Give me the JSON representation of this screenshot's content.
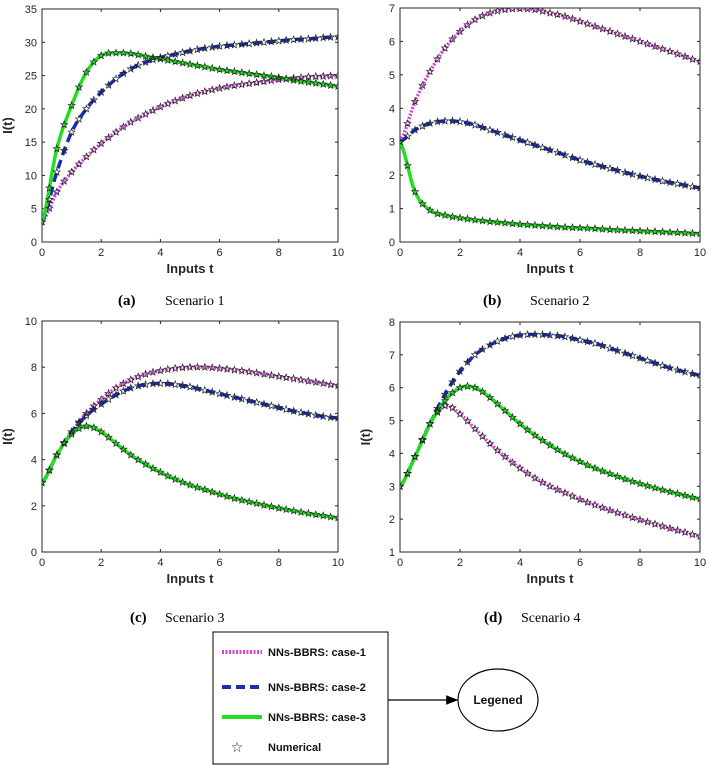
{
  "chart_data": [
    {
      "type": "line",
      "panel": "a",
      "caption_letter": "(a)",
      "caption_text": "Scenario 1",
      "xlabel": "Inputs t",
      "ylabel": "I(t)",
      "xlim": [
        0,
        10
      ],
      "ylim": [
        0,
        35
      ],
      "xticks": [
        0,
        2,
        4,
        6,
        8,
        10
      ],
      "yticks": [
        0,
        5,
        10,
        15,
        20,
        25,
        30,
        35
      ],
      "x": [
        0,
        0.5,
        1,
        1.5,
        2,
        2.5,
        3,
        3.5,
        4,
        4.5,
        5,
        5.5,
        6,
        6.5,
        7,
        7.5,
        8,
        8.5,
        9,
        9.5,
        10
      ],
      "series": [
        {
          "name": "NNs-BBRS: case-1",
          "values": [
            3,
            7.5,
            10.5,
            12.8,
            14.8,
            16.5,
            18,
            19.2,
            20.3,
            21.2,
            22,
            22.6,
            23.1,
            23.5,
            23.8,
            24.1,
            24.4,
            24.6,
            24.8,
            24.9,
            25
          ]
        },
        {
          "name": "NNs-BBRS: case-2",
          "values": [
            3,
            10.5,
            16.5,
            20,
            22.5,
            24.5,
            26,
            27,
            27.7,
            28.2,
            28.7,
            29.1,
            29.4,
            29.6,
            29.8,
            30,
            30.2,
            30.4,
            30.5,
            30.7,
            30.8
          ]
        },
        {
          "name": "NNs-BBRS: case-3",
          "values": [
            3,
            14,
            20.5,
            25.5,
            28,
            28.4,
            28.3,
            27.9,
            27.5,
            27.1,
            26.7,
            26.3,
            25.9,
            25.6,
            25.3,
            25,
            24.7,
            24.3,
            24,
            23.7,
            23.4
          ]
        }
      ]
    },
    {
      "type": "line",
      "panel": "b",
      "caption_letter": "(b)",
      "caption_text": "Scenario 2",
      "xlabel": "Inputs t",
      "ylabel": "",
      "xlim": [
        0,
        10
      ],
      "ylim": [
        0,
        7
      ],
      "xticks": [
        0,
        2,
        4,
        6,
        8,
        10
      ],
      "yticks": [
        0,
        1,
        2,
        3,
        4,
        5,
        6,
        7
      ],
      "x": [
        0,
        0.5,
        1,
        1.5,
        2,
        2.5,
        3,
        3.5,
        4,
        4.5,
        5,
        5.5,
        6,
        6.5,
        7,
        7.5,
        8,
        8.5,
        9,
        9.5,
        10
      ],
      "series": [
        {
          "name": "NNs-BBRS: case-1",
          "values": [
            3,
            4.2,
            5.1,
            5.8,
            6.3,
            6.65,
            6.85,
            6.95,
            6.98,
            6.95,
            6.85,
            6.75,
            6.6,
            6.45,
            6.3,
            6.15,
            6,
            5.85,
            5.7,
            5.55,
            5.4
          ]
        },
        {
          "name": "NNs-BBRS: case-2",
          "values": [
            3,
            3.35,
            3.55,
            3.62,
            3.6,
            3.5,
            3.35,
            3.2,
            3.05,
            2.9,
            2.75,
            2.6,
            2.45,
            2.32,
            2.2,
            2.08,
            1.97,
            1.87,
            1.78,
            1.7,
            1.62
          ]
        },
        {
          "name": "NNs-BBRS: case-3",
          "values": [
            3,
            1.5,
            0.95,
            0.8,
            0.72,
            0.66,
            0.61,
            0.57,
            0.53,
            0.5,
            0.47,
            0.44,
            0.42,
            0.4,
            0.37,
            0.35,
            0.33,
            0.31,
            0.29,
            0.27,
            0.25
          ]
        }
      ]
    },
    {
      "type": "line",
      "panel": "c",
      "caption_letter": "(c)",
      "caption_text": "Scenario 3",
      "xlabel": "Inputs t",
      "ylabel": "I(t)",
      "xlim": [
        0,
        10
      ],
      "ylim": [
        0,
        10
      ],
      "xticks": [
        0,
        2,
        4,
        6,
        8,
        10
      ],
      "yticks": [
        0,
        2,
        4,
        6,
        8,
        10
      ],
      "x": [
        0,
        0.5,
        1,
        1.5,
        2,
        2.5,
        3,
        3.5,
        4,
        4.5,
        5,
        5.5,
        6,
        6.5,
        7,
        7.5,
        8,
        8.5,
        9,
        9.5,
        10
      ],
      "series": [
        {
          "name": "NNs-BBRS: case-1",
          "values": [
            3,
            4.2,
            5.2,
            6,
            6.6,
            7.1,
            7.45,
            7.7,
            7.85,
            7.95,
            8,
            8,
            7.95,
            7.88,
            7.8,
            7.7,
            7.6,
            7.5,
            7.4,
            7.3,
            7.2
          ]
        },
        {
          "name": "NNs-BBRS: case-2",
          "values": [
            3,
            4.2,
            5.2,
            5.9,
            6.4,
            6.8,
            7.1,
            7.25,
            7.3,
            7.25,
            7.15,
            7,
            6.85,
            6.7,
            6.55,
            6.4,
            6.25,
            6.1,
            5.98,
            5.87,
            5.8
          ]
        },
        {
          "name": "NNs-BBRS: case-3",
          "values": [
            3,
            4.2,
            5.1,
            5.45,
            5.2,
            4.7,
            4.2,
            3.8,
            3.45,
            3.15,
            2.9,
            2.7,
            2.5,
            2.32,
            2.17,
            2.03,
            1.9,
            1.78,
            1.67,
            1.57,
            1.48
          ]
        }
      ]
    },
    {
      "type": "line",
      "panel": "d",
      "caption_letter": "(d)",
      "caption_text": "Scenario 4",
      "xlabel": "Inputs t",
      "ylabel": "I(t)",
      "xlim": [
        0,
        10
      ],
      "ylim": [
        1,
        8
      ],
      "xticks": [
        0,
        2,
        4,
        6,
        8,
        10
      ],
      "yticks": [
        1,
        2,
        3,
        4,
        5,
        6,
        7,
        8
      ],
      "x": [
        0,
        0.5,
        1,
        1.5,
        2,
        2.5,
        3,
        3.5,
        4,
        4.5,
        5,
        5.5,
        6,
        6.5,
        7,
        7.5,
        8,
        8.5,
        9,
        9.5,
        10
      ],
      "series": [
        {
          "name": "NNs-BBRS: case-1",
          "values": [
            3,
            3.9,
            4.9,
            5.45,
            5.2,
            4.75,
            4.3,
            3.9,
            3.55,
            3.25,
            3,
            2.8,
            2.6,
            2.43,
            2.27,
            2.12,
            1.98,
            1.85,
            1.72,
            1.6,
            1.48
          ]
        },
        {
          "name": "NNs-BBRS: case-2",
          "values": [
            3,
            3.9,
            4.9,
            5.8,
            6.5,
            7,
            7.3,
            7.5,
            7.6,
            7.62,
            7.6,
            7.55,
            7.45,
            7.35,
            7.2,
            7.05,
            6.9,
            6.75,
            6.6,
            6.48,
            6.38
          ]
        },
        {
          "name": "NNs-BBRS: case-3",
          "values": [
            3,
            3.9,
            4.9,
            5.6,
            6,
            6,
            5.7,
            5.3,
            4.9,
            4.55,
            4.25,
            3.98,
            3.75,
            3.55,
            3.38,
            3.22,
            3.08,
            2.95,
            2.83,
            2.72,
            2.62
          ]
        }
      ]
    }
  ],
  "styles": {
    "case1_color": "#d147d1",
    "case2_color": "#1a2fb0",
    "case3_color": "#22dd22",
    "marker_color": "#222222"
  },
  "legend": {
    "items": [
      "NNs-BBRS: case-1",
      "NNs-BBRS: case-2",
      "NNs-BBRS: case-3",
      "Numerical"
    ],
    "marker_symbol": "☆",
    "callout_label": "Legened"
  }
}
